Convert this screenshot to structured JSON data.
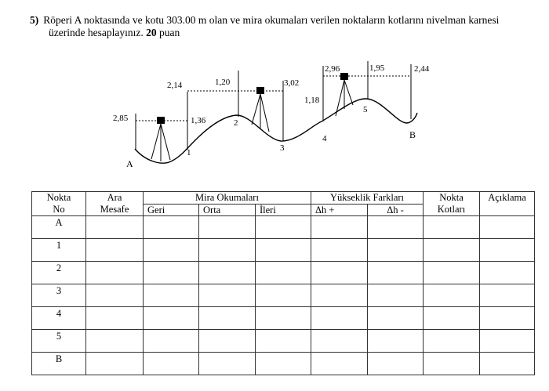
{
  "question": {
    "number": "5)",
    "line1": "Röperi A noktasında ve kotu 303.00 m olan ve mira okumaları verilen noktaların kotlarını nivelman karnesi",
    "line2": "üzerinde hesaplayınız.",
    "points": "20",
    "points_suffix": "puan"
  },
  "diagram": {
    "readings": [
      "2,85",
      "2,14",
      "1,36",
      "1,20",
      "3,02",
      "1,18",
      "2,96",
      "1,95",
      "2,44"
    ],
    "points": [
      "A",
      "1",
      "2",
      "3",
      "4",
      "5",
      "B"
    ]
  },
  "table": {
    "headers": {
      "nokta_no": [
        "Nokta",
        "No"
      ],
      "ara_mesafe": [
        "Ara",
        "Mesafe"
      ],
      "mira": "Mira Okumaları",
      "geri": "Geri",
      "orta": "Orta",
      "ileri": "İleri",
      "yukseklik": "Yükseklik Farkları",
      "dh_plus": "Δh +",
      "dh_minus": "Δh -",
      "nokta_kotlari": [
        "Nokta",
        "Kotları"
      ],
      "aciklama": "Açıklama"
    },
    "rows": [
      "A",
      "1",
      "2",
      "3",
      "4",
      "5",
      "B"
    ]
  }
}
